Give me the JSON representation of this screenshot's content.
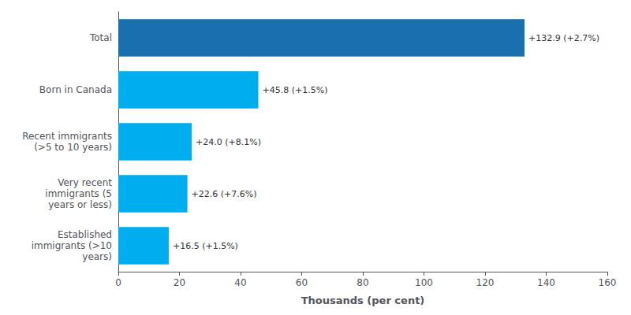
{
  "chart_data": {
    "type": "bar",
    "orientation": "horizontal",
    "categories": [
      "Established\nimmigrants (>10\nyears)",
      "Very recent\nimmigrants (5\nyears or less)",
      "Recent immigrants\n(>5 to 10 years)",
      "Born in Canada",
      "Total"
    ],
    "values": [
      16.5,
      22.6,
      24.0,
      45.8,
      132.9
    ],
    "value_labels": [
      "+16.5 (+1.5%)",
      "+22.6 (+7.6%)",
      "+24.0 (+8.1%)",
      "+45.8 (+1.5%)",
      "+132.9 (+2.7%)"
    ],
    "data_labels": true,
    "colors": [
      "#00aeef",
      "#00aeef",
      "#00aeef",
      "#00aeef",
      "#1a6faf"
    ],
    "xlabel": "Thousands (per cent)",
    "xlim": [
      0,
      160
    ],
    "xticks": [
      0,
      20,
      40,
      60,
      80,
      100,
      120,
      140,
      160
    ],
    "grid": false
  }
}
